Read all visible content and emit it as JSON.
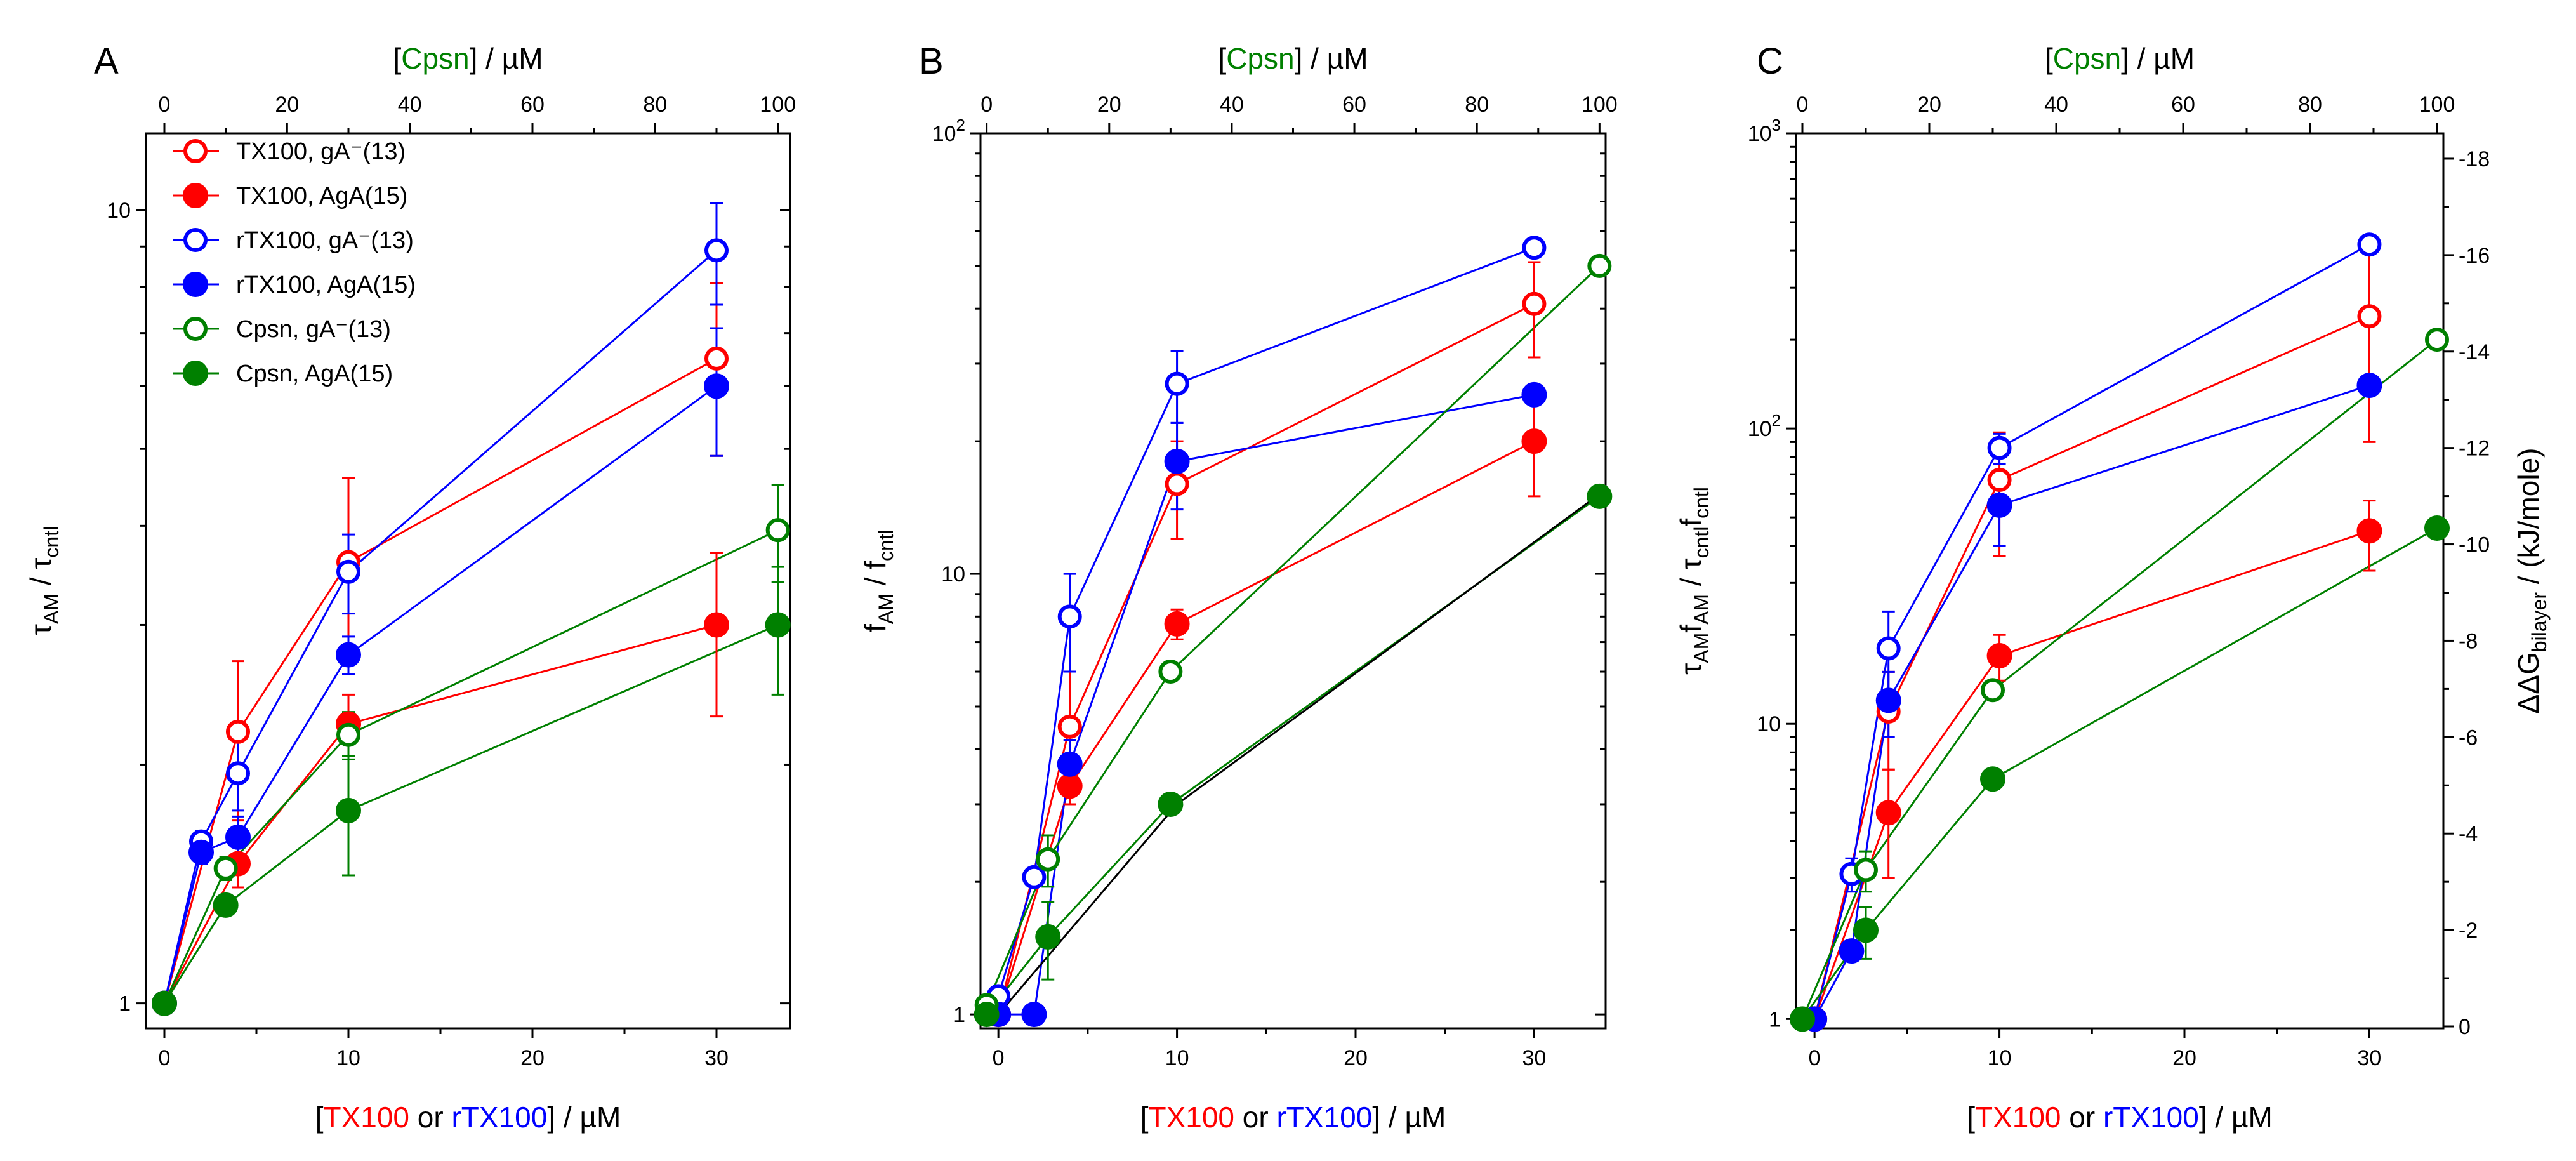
{
  "colors": {
    "tx100": "#ff0000",
    "rtx100": "#0000ff",
    "cpsn": "#008000",
    "black": "#000000"
  },
  "axis_text": {
    "top_bracket_open": "[",
    "top_name": "Cpsn",
    "top_suffix": "] / µM",
    "bottom_bracket_open": "[",
    "bottom_tx": "TX100",
    "bottom_or": " or ",
    "bottom_rtx": "rTX100",
    "bottom_suffix": "] / µM"
  },
  "chart_data": [
    {
      "type": "line",
      "panel": "A",
      "yscale": "log",
      "ylim": [
        0.93,
        12.5
      ],
      "xlim": [
        -1,
        34
      ],
      "x2lim": [
        -3,
        102
      ],
      "ylabel_main": "τ",
      "ylabel_sub1": "AM",
      "ylabel_mid": " / τ",
      "ylabel_sub2": "cntl",
      "x_ticks": [
        0,
        10,
        20,
        30
      ],
      "x2_ticks": [
        0,
        20,
        40,
        60,
        80,
        100
      ],
      "y_major_ticks": [
        1,
        10
      ],
      "y_major_labels": [
        "1",
        "10"
      ],
      "legend": [
        {
          "label": "TX100, gA⁻(13)",
          "color": "#ff0000",
          "filled": false
        },
        {
          "label": "TX100, AgA(15)",
          "color": "#ff0000",
          "filled": true
        },
        {
          "label": "rTX100, gA⁻(13)",
          "color": "#0000ff",
          "filled": false
        },
        {
          "label": "rTX100, AgA(15)",
          "color": "#0000ff",
          "filled": true
        },
        {
          "label": "Cpsn, gA⁻(13)",
          "color": "#008000",
          "filled": false
        },
        {
          "label": "Cpsn, AgA(15)",
          "color": "#008000",
          "filled": true
        }
      ],
      "series": [
        {
          "name": "TX100, gA-(13)",
          "color": "#ff0000",
          "filled": false,
          "axis": "bottom",
          "x": [
            0,
            4,
            10,
            30
          ],
          "y": [
            1.0,
            2.2,
            3.6,
            6.5
          ],
          "err": [
            0,
            0.5,
            1.0,
            1.6
          ]
        },
        {
          "name": "TX100, AgA(15)",
          "color": "#ff0000",
          "filled": true,
          "axis": "bottom",
          "x": [
            0,
            4,
            10,
            30
          ],
          "y": [
            1.0,
            1.5,
            2.25,
            3.0
          ],
          "err": [
            0,
            0.1,
            0.2,
            0.7
          ]
        },
        {
          "name": "rTX100, gA-(13)",
          "color": "#0000ff",
          "filled": false,
          "axis": "bottom",
          "x": [
            0,
            2,
            4,
            10,
            30
          ],
          "y": [
            1.0,
            1.6,
            1.95,
            3.5,
            8.9
          ],
          "err": [
            0,
            0.05,
            0.2,
            0.4,
            1.3
          ]
        },
        {
          "name": "rTX100, AgA(15)",
          "color": "#0000ff",
          "filled": true,
          "axis": "bottom",
          "x": [
            0,
            2,
            4,
            10,
            30
          ],
          "y": [
            1.0,
            1.55,
            1.62,
            2.75,
            6.0
          ],
          "err": [
            0,
            0.05,
            0.1,
            0.15,
            1.1
          ]
        },
        {
          "name": "Cpsn, gA-(13)",
          "color": "#008000",
          "filled": false,
          "axis": "top",
          "x": [
            0,
            10,
            30,
            100
          ],
          "y": [
            1.0,
            1.48,
            2.18,
            3.95
          ],
          "err": [
            0,
            0.05,
            0.15,
            0.55
          ]
        },
        {
          "name": "Cpsn, AgA(15)",
          "color": "#008000",
          "filled": true,
          "axis": "top",
          "x": [
            0,
            10,
            30,
            100
          ],
          "y": [
            1.0,
            1.33,
            1.75,
            3.0
          ],
          "err": [
            0,
            0.03,
            0.3,
            0.55
          ]
        }
      ]
    },
    {
      "type": "line",
      "panel": "B",
      "yscale": "log",
      "ylim": [
        0.93,
        100
      ],
      "xlim": [
        -1,
        34
      ],
      "x2lim": [
        -1,
        101
      ],
      "ylabel_main": "f",
      "ylabel_sub1": "AM",
      "ylabel_mid": " / f",
      "ylabel_sub2": "cntl",
      "x_ticks": [
        0,
        10,
        20,
        30
      ],
      "x2_ticks": [
        0,
        20,
        40,
        60,
        80,
        100
      ],
      "y_major_ticks": [
        1,
        10,
        100
      ],
      "y_major_labels": [
        "1",
        "10",
        "10²"
      ],
      "series": [
        {
          "name": "TX100, gA-(13)",
          "color": "#ff0000",
          "filled": false,
          "axis": "bottom",
          "x": [
            0,
            4,
            10,
            30
          ],
          "y": [
            1.0,
            4.5,
            16.0,
            41.0
          ],
          "err": [
            0,
            1.5,
            4.0,
            10.0
          ]
        },
        {
          "name": "TX100, AgA(15)",
          "color": "#ff0000",
          "filled": true,
          "axis": "bottom",
          "x": [
            0,
            4,
            10,
            30
          ],
          "y": [
            1.0,
            3.3,
            7.7,
            20.0
          ],
          "err": [
            0,
            0.3,
            0.6,
            5.0
          ]
        },
        {
          "name": "rTX100, gA-(13)",
          "color": "#0000ff",
          "filled": false,
          "axis": "bottom",
          "x": [
            0,
            2,
            4,
            10,
            30
          ],
          "y": [
            1.1,
            2.05,
            8.0,
            27.0,
            55.0
          ],
          "err": [
            0,
            0.05,
            2.0,
            5.0,
            0
          ]
        },
        {
          "name": "rTX100, AgA(15)",
          "color": "#0000ff",
          "filled": true,
          "axis": "bottom",
          "x": [
            0,
            2,
            4,
            10,
            30
          ],
          "y": [
            1.0,
            1.0,
            3.7,
            18.0,
            25.5
          ],
          "err": [
            0,
            0,
            0.5,
            4.0,
            0
          ]
        },
        {
          "name": "Cpsn, gA-(13)",
          "color": "#008000",
          "filled": false,
          "axis": "top",
          "x": [
            0,
            10,
            30,
            100
          ],
          "y": [
            1.05,
            2.25,
            6.0,
            50.0
          ],
          "err": [
            0,
            0.3,
            0,
            0
          ]
        },
        {
          "name": "Cpsn, AgA(15)",
          "color": "#008000",
          "filled": true,
          "axis": "top",
          "x": [
            0,
            10,
            30,
            100
          ],
          "y": [
            1.0,
            1.5,
            3.0,
            15.0
          ],
          "err": [
            0,
            0.3,
            0,
            0
          ]
        },
        {
          "name": "reference",
          "color": "#000000",
          "filled": null,
          "axis": "bottom",
          "x": [
            0,
            10,
            33.5
          ],
          "y": [
            1.0,
            3.0,
            15.0
          ],
          "err": [
            0,
            0,
            0
          ]
        }
      ]
    },
    {
      "type": "line",
      "panel": "C",
      "yscale": "log",
      "ylim": [
        0.93,
        1000
      ],
      "xlim": [
        -1,
        34
      ],
      "x2lim": [
        -1,
        101
      ],
      "ylabel_main": "τ",
      "ylabel_sub1": "AM",
      "ylabel_mid": "f",
      "ylabel_sub2": "AM",
      "ylabel_mid2": " / τ",
      "ylabel_sub3": "cntl",
      "ylabel_mid3": "f",
      "ylabel_sub4": "cntl",
      "y2label_main": "ΔΔG",
      "y2label_sub": "bilayer",
      "y2label_suffix": " / (kJ/mole)",
      "x_ticks": [
        0,
        10,
        20,
        30
      ],
      "x2_ticks": [
        0,
        20,
        40,
        60,
        80,
        100
      ],
      "y_major_ticks": [
        1,
        10,
        100,
        1000
      ],
      "y_major_labels": [
        "1",
        "10",
        "10²",
        "10³"
      ],
      "y2_ticks": [
        0,
        -2,
        -4,
        -6,
        -8,
        -10,
        -12,
        -14,
        -16,
        -18
      ],
      "series": [
        {
          "name": "TX100, gA-(13)",
          "color": "#ff0000",
          "filled": false,
          "axis": "bottom",
          "x": [
            0,
            4,
            10,
            30
          ],
          "y": [
            1.0,
            11.0,
            67.0,
            240.0
          ],
          "err": [
            0,
            4.0,
            30.0,
            150.0
          ]
        },
        {
          "name": "TX100, AgA(15)",
          "color": "#ff0000",
          "filled": true,
          "axis": "bottom",
          "x": [
            0,
            4,
            10,
            30
          ],
          "y": [
            1.0,
            5.0,
            17.0,
            45.0
          ],
          "err": [
            0,
            2.0,
            3.0,
            12.0
          ]
        },
        {
          "name": "rTX100, gA-(13)",
          "color": "#0000ff",
          "filled": false,
          "axis": "bottom",
          "x": [
            0,
            2,
            4,
            10,
            30
          ],
          "y": [
            1.0,
            3.1,
            18.0,
            86.0,
            420.0
          ],
          "err": [
            0,
            0.4,
            6.0,
            10.0,
            0
          ]
        },
        {
          "name": "rTX100, AgA(15)",
          "color": "#0000ff",
          "filled": true,
          "axis": "bottom",
          "x": [
            0,
            2,
            4,
            10,
            30
          ],
          "y": [
            1.0,
            1.7,
            12.0,
            55.0,
            140.0
          ],
          "err": [
            0,
            0.1,
            3.0,
            15.0,
            0
          ]
        },
        {
          "name": "Cpsn, gA-(13)",
          "color": "#008000",
          "filled": false,
          "axis": "top",
          "x": [
            0,
            10,
            30,
            100
          ],
          "y": [
            1.0,
            3.2,
            13.0,
            200.0
          ],
          "err": [
            0,
            0.5,
            0,
            0
          ]
        },
        {
          "name": "Cpsn, AgA(15)",
          "color": "#008000",
          "filled": true,
          "axis": "top",
          "x": [
            0,
            10,
            30,
            100
          ],
          "y": [
            1.0,
            2.0,
            6.5,
            46.0
          ],
          "err": [
            0,
            0.4,
            0,
            0
          ]
        }
      ]
    }
  ]
}
